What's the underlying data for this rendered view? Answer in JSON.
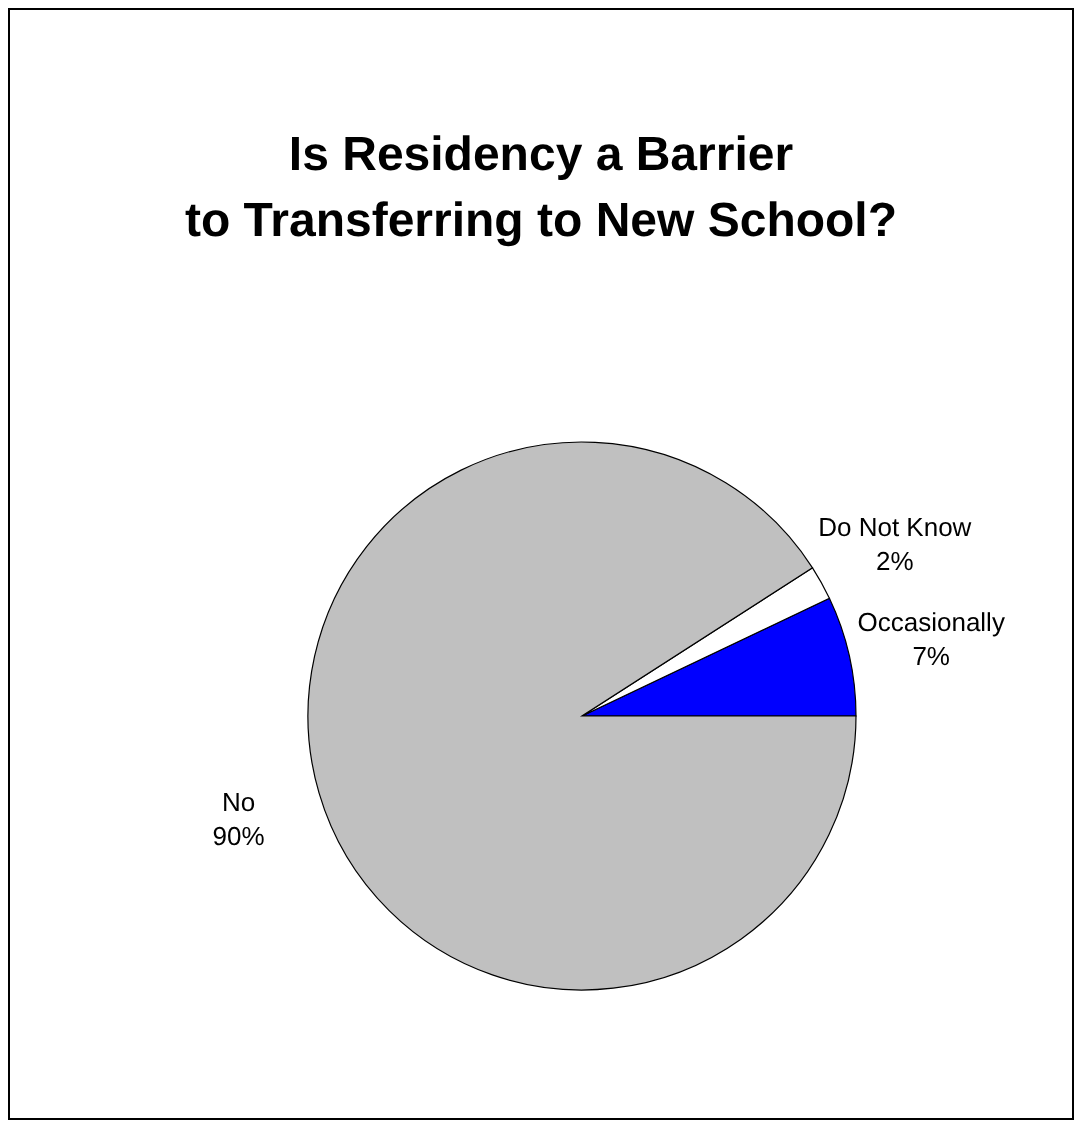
{
  "chart_data": {
    "type": "pie",
    "title": "Is Residency a Barrier\nto Transferring to New School?",
    "categories": [
      "Occasionally",
      "Do Not Know",
      "No"
    ],
    "values": [
      7,
      2,
      90
    ],
    "colors": [
      "#0000ff",
      "#ffffff",
      "#c0c0c0"
    ],
    "value_labels": [
      "7%",
      "2%",
      "90%"
    ],
    "legend": false
  }
}
